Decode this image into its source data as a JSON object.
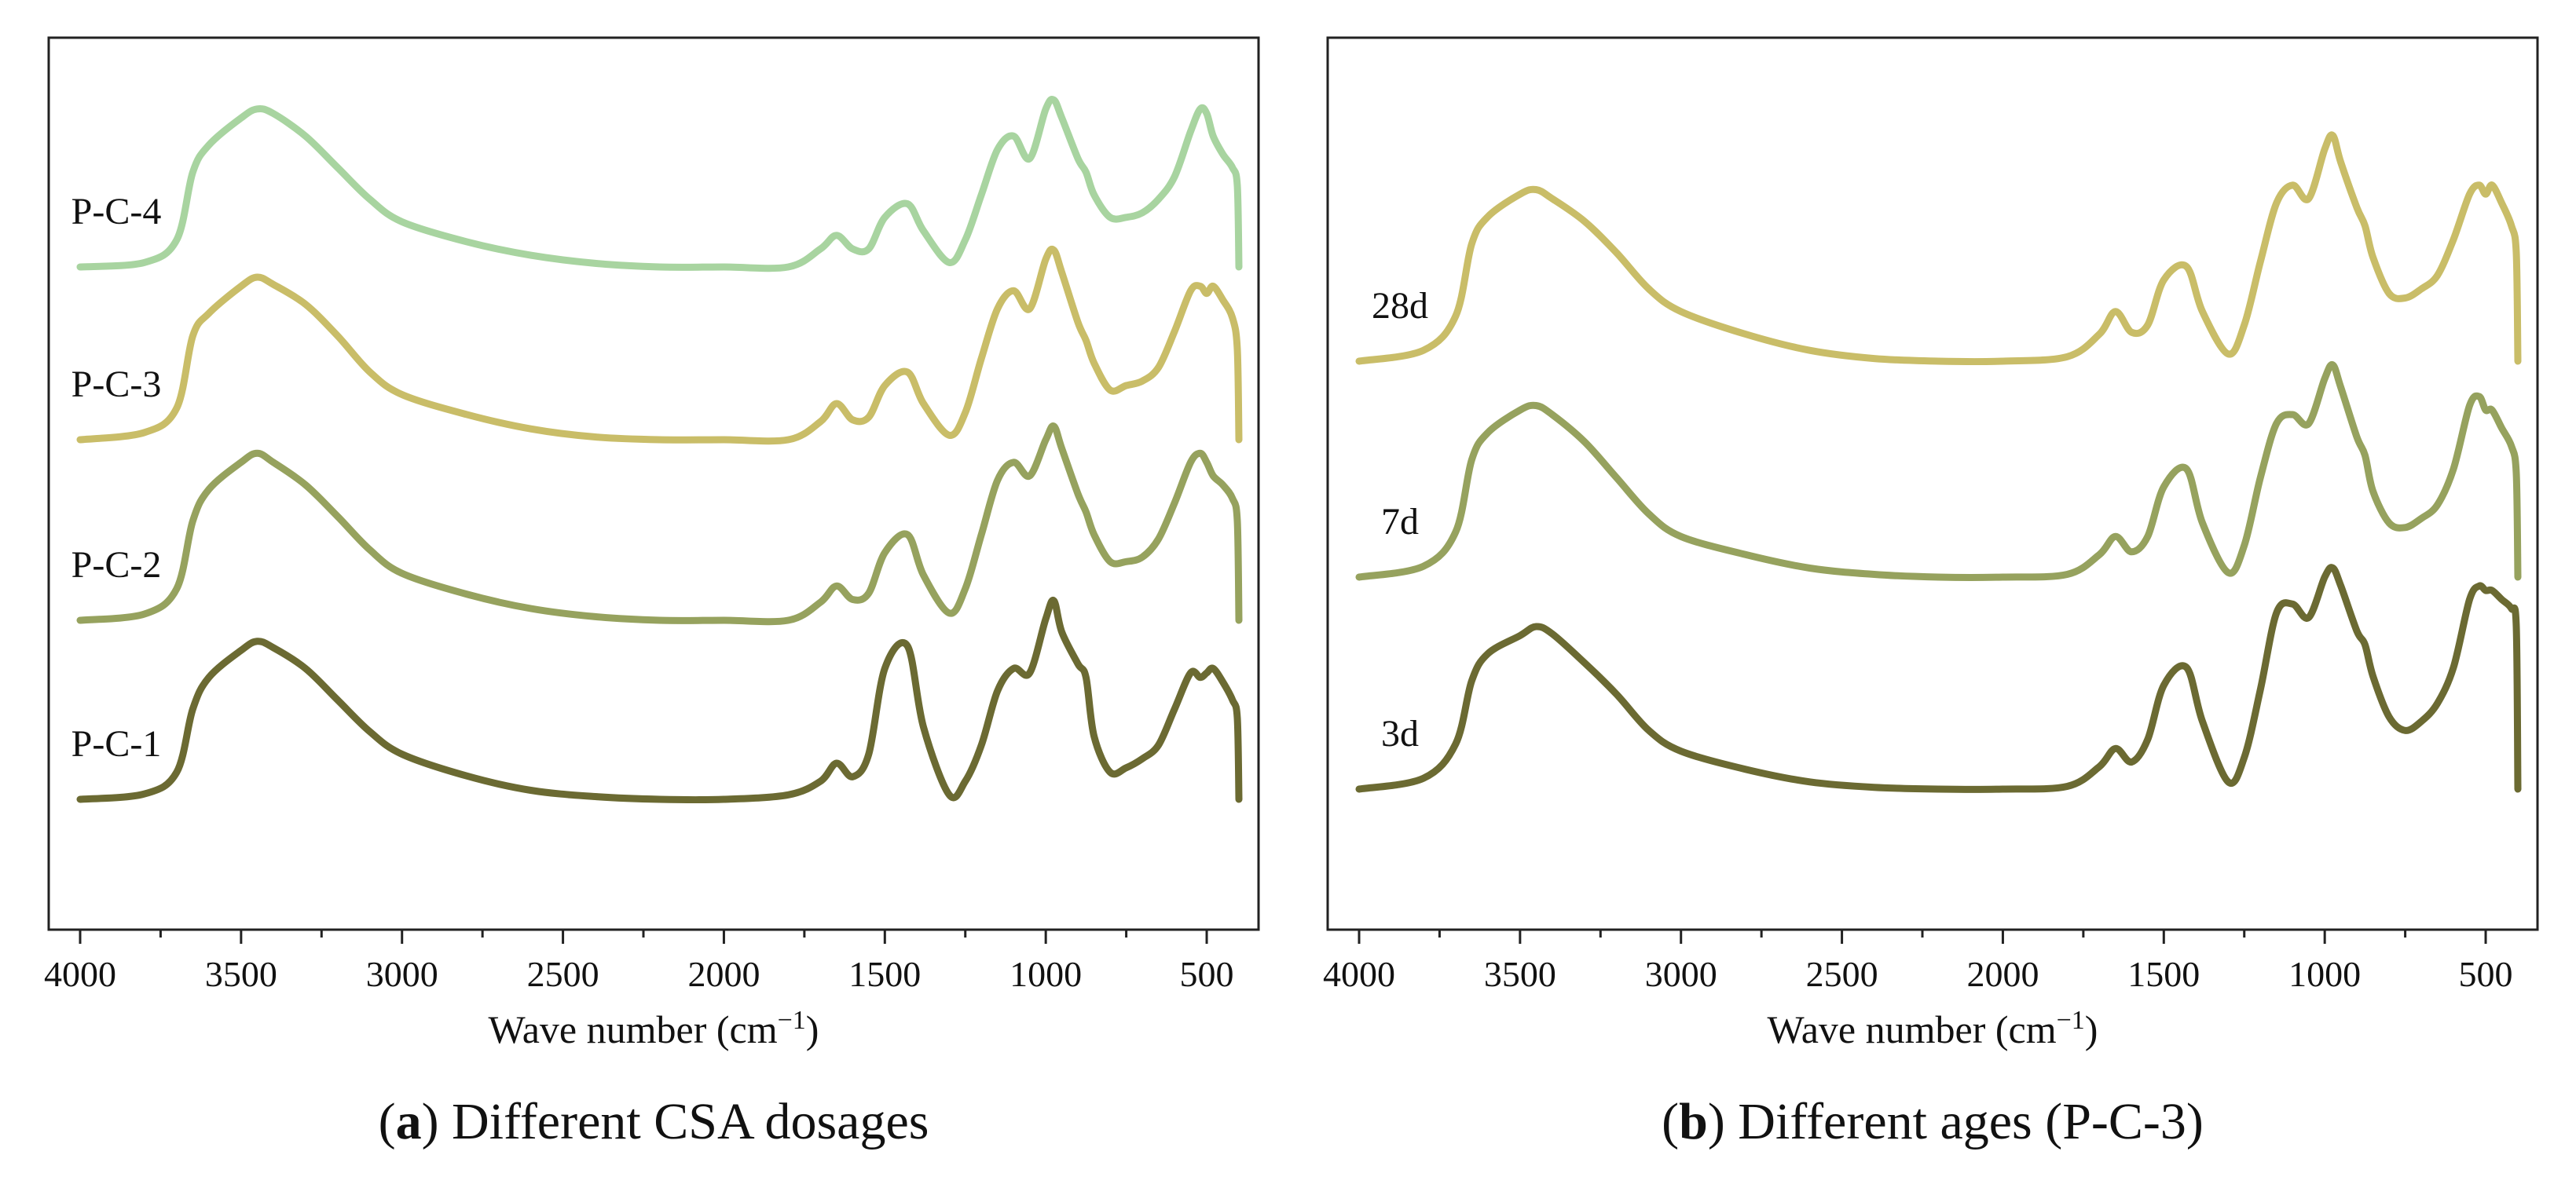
{
  "captions": {
    "a_letter": "a",
    "a_text": " Different CSA dosages",
    "b_letter": "b",
    "b_text": " Different ages (P-C-3)"
  },
  "xlabel_main": "Wave number (cm",
  "xlabel_sup": "−1",
  "xlabel_close": ")",
  "colors": {
    "P-C-4": "#a8d4a0",
    "P-C-3": "#c9bd68",
    "P-C-2": "#96a25e",
    "P-C-1": "#6b6a32",
    "28d": "#c9bd68",
    "7d": "#96a25e",
    "3d": "#6b6a32"
  },
  "chart_data": [
    {
      "type": "line",
      "panel": "a",
      "xlabel": "Wave number (cm−1)",
      "ylabel": "",
      "x_reversed": true,
      "xlim": [
        4000,
        400
      ],
      "x_ticks": [
        4000,
        3500,
        3000,
        2500,
        2000,
        1500,
        1000,
        500
      ],
      "y_units": "transmittance (stacked, arbitrary)",
      "grid": false,
      "x": [
        4000,
        3800,
        3700,
        3650,
        3600,
        3500,
        3450,
        3400,
        3300,
        3200,
        3100,
        3000,
        2800,
        2600,
        2400,
        2200,
        2000,
        1800,
        1700,
        1650,
        1600,
        1550,
        1500,
        1430,
        1380,
        1300,
        1250,
        1200,
        1150,
        1100,
        1050,
        1000,
        975,
        950,
        900,
        875,
        850,
        800,
        750,
        700,
        650,
        600,
        550,
        520,
        500,
        480,
        450,
        420,
        405,
        400
      ],
      "series": [
        {
          "name": "P-C-4",
          "label_side": "left",
          "values": [
            0.0,
            0.05,
            0.3,
            1.05,
            1.35,
            1.65,
            1.75,
            1.7,
            1.45,
            1.1,
            0.75,
            0.5,
            0.28,
            0.13,
            0.04,
            0.0,
            0.0,
            0.0,
            0.2,
            0.35,
            0.2,
            0.2,
            0.55,
            0.7,
            0.4,
            0.05,
            0.3,
            0.8,
            1.3,
            1.45,
            1.2,
            1.75,
            1.85,
            1.65,
            1.2,
            1.05,
            0.8,
            0.55,
            0.55,
            0.6,
            0.75,
            1.0,
            1.5,
            1.75,
            1.7,
            1.45,
            1.25,
            1.1,
            0.9,
            0.0
          ]
        },
        {
          "name": "P-C-3",
          "label_side": "left",
          "values": [
            0.0,
            0.08,
            0.35,
            1.15,
            1.4,
            1.7,
            1.8,
            1.72,
            1.5,
            1.15,
            0.75,
            0.5,
            0.28,
            0.12,
            0.03,
            0.0,
            0.0,
            0.0,
            0.2,
            0.4,
            0.22,
            0.25,
            0.6,
            0.75,
            0.4,
            0.05,
            0.3,
            0.9,
            1.45,
            1.65,
            1.45,
            2.0,
            2.1,
            1.85,
            1.3,
            1.1,
            0.85,
            0.55,
            0.6,
            0.65,
            0.8,
            1.2,
            1.65,
            1.7,
            1.62,
            1.7,
            1.55,
            1.35,
            1.0,
            0.0
          ]
        },
        {
          "name": "P-C-2",
          "label_side": "left",
          "values": [
            0.0,
            0.07,
            0.35,
            1.1,
            1.45,
            1.75,
            1.85,
            1.75,
            1.5,
            1.15,
            0.78,
            0.52,
            0.29,
            0.13,
            0.04,
            0.0,
            0.0,
            0.0,
            0.2,
            0.38,
            0.23,
            0.3,
            0.75,
            0.95,
            0.5,
            0.08,
            0.35,
            0.95,
            1.55,
            1.75,
            1.6,
            2.0,
            2.15,
            1.9,
            1.4,
            1.2,
            0.95,
            0.65,
            0.65,
            0.7,
            0.9,
            1.3,
            1.75,
            1.85,
            1.75,
            1.6,
            1.5,
            1.35,
            1.1,
            0.0
          ]
        },
        {
          "name": "P-C-1",
          "label_side": "left",
          "values": [
            0.0,
            0.06,
            0.3,
            1.0,
            1.35,
            1.65,
            1.75,
            1.68,
            1.45,
            1.1,
            0.75,
            0.5,
            0.26,
            0.1,
            0.03,
            0.0,
            0.0,
            0.05,
            0.2,
            0.4,
            0.25,
            0.5,
            1.45,
            1.7,
            0.8,
            0.05,
            0.2,
            0.6,
            1.2,
            1.45,
            1.4,
            2.0,
            2.2,
            1.85,
            1.5,
            1.35,
            0.7,
            0.3,
            0.35,
            0.45,
            0.6,
            1.0,
            1.4,
            1.35,
            1.4,
            1.45,
            1.3,
            1.1,
            0.9,
            0.0
          ]
        }
      ]
    },
    {
      "type": "line",
      "panel": "b",
      "xlabel": "Wave number (cm−1)",
      "ylabel": "",
      "x_reversed": true,
      "xlim": [
        4000,
        400
      ],
      "x_ticks": [
        4000,
        3500,
        3000,
        2500,
        2000,
        1500,
        1000,
        500
      ],
      "y_units": "transmittance (stacked, arbitrary)",
      "grid": false,
      "x": [
        4000,
        3800,
        3700,
        3650,
        3600,
        3500,
        3450,
        3400,
        3300,
        3200,
        3100,
        3000,
        2800,
        2600,
        2400,
        2200,
        2000,
        1800,
        1700,
        1650,
        1600,
        1550,
        1500,
        1430,
        1380,
        1300,
        1250,
        1200,
        1150,
        1100,
        1050,
        1000,
        975,
        950,
        900,
        875,
        850,
        800,
        750,
        700,
        650,
        600,
        550,
        520,
        500,
        480,
        450,
        420,
        405,
        400
      ],
      "series": [
        {
          "name": "28d",
          "label_side": "left",
          "values": [
            0.0,
            0.12,
            0.5,
            1.3,
            1.6,
            1.85,
            1.9,
            1.8,
            1.55,
            1.2,
            0.8,
            0.55,
            0.3,
            0.12,
            0.03,
            0.0,
            0.0,
            0.05,
            0.3,
            0.55,
            0.32,
            0.4,
            0.9,
            1.05,
            0.55,
            0.08,
            0.4,
            1.1,
            1.75,
            1.95,
            1.8,
            2.35,
            2.5,
            2.2,
            1.7,
            1.5,
            1.15,
            0.75,
            0.7,
            0.8,
            0.95,
            1.35,
            1.85,
            1.95,
            1.85,
            1.95,
            1.75,
            1.5,
            1.2,
            0.0
          ]
        },
        {
          "name": "7d",
          "label_side": "left",
          "values": [
            0.0,
            0.12,
            0.5,
            1.3,
            1.6,
            1.85,
            1.9,
            1.8,
            1.5,
            1.1,
            0.7,
            0.45,
            0.25,
            0.1,
            0.03,
            0.0,
            0.0,
            0.03,
            0.25,
            0.45,
            0.28,
            0.45,
            1.0,
            1.2,
            0.6,
            0.05,
            0.35,
            1.1,
            1.7,
            1.8,
            1.7,
            2.2,
            2.35,
            2.1,
            1.55,
            1.35,
            0.95,
            0.6,
            0.55,
            0.65,
            0.8,
            1.2,
            1.9,
            2.0,
            1.85,
            1.85,
            1.65,
            1.45,
            1.15,
            0.0
          ]
        },
        {
          "name": "3d",
          "label_side": "left",
          "values": [
            0.0,
            0.12,
            0.5,
            1.2,
            1.5,
            1.7,
            1.8,
            1.72,
            1.4,
            1.05,
            0.65,
            0.42,
            0.22,
            0.08,
            0.02,
            0.0,
            0.0,
            0.03,
            0.25,
            0.45,
            0.3,
            0.55,
            1.15,
            1.35,
            0.75,
            0.08,
            0.35,
            1.1,
            1.95,
            2.05,
            1.9,
            2.35,
            2.45,
            2.25,
            1.75,
            1.6,
            1.25,
            0.8,
            0.65,
            0.75,
            0.95,
            1.35,
            2.1,
            2.25,
            2.2,
            2.2,
            2.1,
            2.0,
            1.8,
            0.0
          ]
        }
      ]
    }
  ]
}
